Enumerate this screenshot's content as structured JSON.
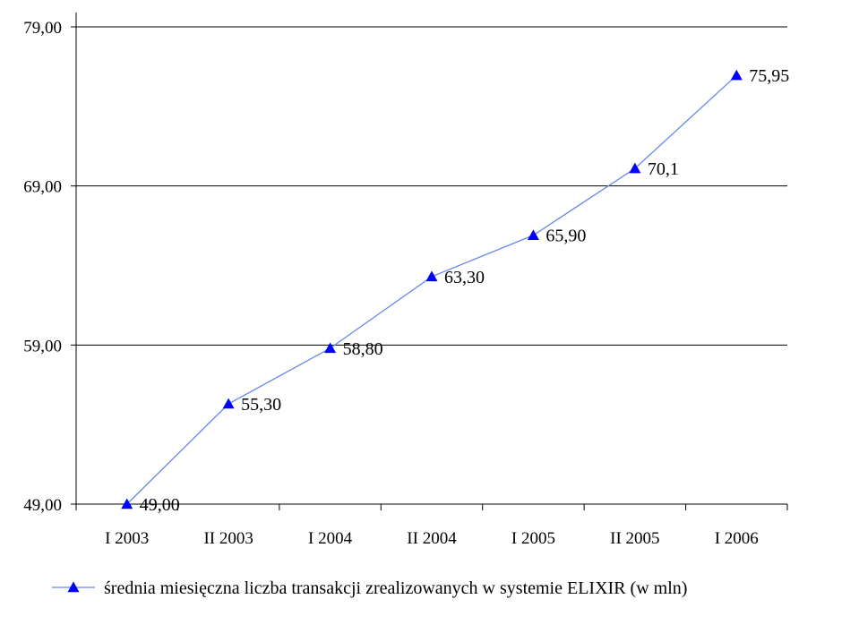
{
  "chart_data": {
    "type": "line",
    "title": "",
    "xlabel": "",
    "ylabel": "",
    "categories": [
      "I 2003",
      "II 2003",
      "I 2004",
      "II 2004",
      "I 2005",
      "II 2005",
      "I 2006"
    ],
    "series": [
      {
        "name": "średnia miesięczna liczba transakcji zrealizowanych w systemie ELIXIR (w mln)",
        "values": [
          49.0,
          55.3,
          58.8,
          63.3,
          65.9,
          70.1,
          75.95
        ],
        "labels": [
          "49,00",
          "55,30",
          "58,80",
          "63,30",
          "65,90",
          "70,1",
          "75,95"
        ],
        "color": "#0000ff",
        "line_color": "#6688ee",
        "marker": "triangle"
      }
    ],
    "ylim": [
      49,
      79
    ],
    "yticks": [
      49,
      59,
      69,
      79
    ],
    "ytick_labels": [
      "49,00",
      "59,00",
      "69,00",
      "79,00"
    ],
    "grid": "horizontal",
    "legend": "bottom"
  }
}
